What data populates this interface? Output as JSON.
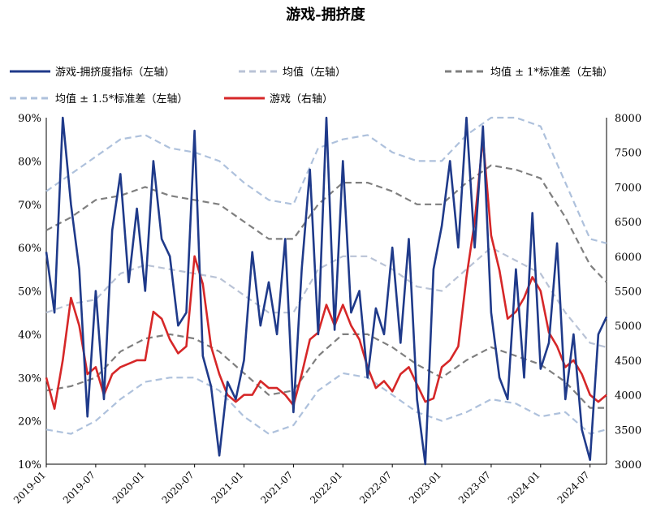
{
  "chart_data": {
    "type": "line",
    "title": "游戏-拥挤度",
    "x_ticks": [
      "2019-01",
      "2019-07",
      "2020-01",
      "2020-07",
      "2021-01",
      "2021-07",
      "2022-01",
      "2022-07",
      "2023-01",
      "2023-07",
      "2024-01",
      "2024-07"
    ],
    "x_range": [
      "2019-01",
      "2024-09"
    ],
    "y_left": {
      "range": [
        0.1,
        0.9
      ],
      "ticks": [
        "10%",
        "20%",
        "30%",
        "40%",
        "50%",
        "60%",
        "70%",
        "80%",
        "90%"
      ]
    },
    "y_right": {
      "range": [
        3000,
        8000
      ],
      "ticks": [
        "3000",
        "3500",
        "4000",
        "4500",
        "5000",
        "5500",
        "6000",
        "6500",
        "7000",
        "7500",
        "8000"
      ]
    },
    "grid": false,
    "legend_position": "top",
    "series": [
      {
        "name": "游戏-拥挤度指标（左轴）",
        "axis": "left",
        "color": "#1f3a8a",
        "style": "solid",
        "values": [
          [
            "2019-01",
            0.59
          ],
          [
            "2019-02",
            0.45
          ],
          [
            "2019-03",
            0.9
          ],
          [
            "2019-04",
            0.7
          ],
          [
            "2019-05",
            0.55
          ],
          [
            "2019-06",
            0.21
          ],
          [
            "2019-07",
            0.5
          ],
          [
            "2019-08",
            0.25
          ],
          [
            "2019-09",
            0.64
          ],
          [
            "2019-10",
            0.77
          ],
          [
            "2019-11",
            0.52
          ],
          [
            "2019-12",
            0.69
          ],
          [
            "2020-01",
            0.5
          ],
          [
            "2020-02",
            0.8
          ],
          [
            "2020-03",
            0.62
          ],
          [
            "2020-04",
            0.58
          ],
          [
            "2020-05",
            0.42
          ],
          [
            "2020-06",
            0.45
          ],
          [
            "2020-07",
            0.87
          ],
          [
            "2020-08",
            0.35
          ],
          [
            "2020-09",
            0.28
          ],
          [
            "2020-10",
            0.12
          ],
          [
            "2020-11",
            0.29
          ],
          [
            "2020-12",
            0.25
          ],
          [
            "2021-01",
            0.34
          ],
          [
            "2021-02",
            0.59
          ],
          [
            "2021-03",
            0.42
          ],
          [
            "2021-04",
            0.52
          ],
          [
            "2021-05",
            0.4
          ],
          [
            "2021-06",
            0.62
          ],
          [
            "2021-07",
            0.22
          ],
          [
            "2021-08",
            0.55
          ],
          [
            "2021-09",
            0.78
          ],
          [
            "2021-10",
            0.4
          ],
          [
            "2021-11",
            0.9
          ],
          [
            "2021-12",
            0.41
          ],
          [
            "2022-01",
            0.8
          ],
          [
            "2022-02",
            0.45
          ],
          [
            "2022-03",
            0.5
          ],
          [
            "2022-04",
            0.3
          ],
          [
            "2022-05",
            0.46
          ],
          [
            "2022-06",
            0.4
          ],
          [
            "2022-07",
            0.6
          ],
          [
            "2022-08",
            0.38
          ],
          [
            "2022-09",
            0.62
          ],
          [
            "2022-10",
            0.25
          ],
          [
            "2022-11",
            0.1
          ],
          [
            "2022-12",
            0.55
          ],
          [
            "2023-01",
            0.65
          ],
          [
            "2023-02",
            0.8
          ],
          [
            "2023-03",
            0.6
          ],
          [
            "2023-04",
            0.9
          ],
          [
            "2023-05",
            0.6
          ],
          [
            "2023-06",
            0.88
          ],
          [
            "2023-07",
            0.45
          ],
          [
            "2023-08",
            0.3
          ],
          [
            "2023-09",
            0.25
          ],
          [
            "2023-10",
            0.55
          ],
          [
            "2023-11",
            0.3
          ],
          [
            "2023-12",
            0.68
          ],
          [
            "2024-01",
            0.32
          ],
          [
            "2024-02",
            0.38
          ],
          [
            "2024-03",
            0.61
          ],
          [
            "2024-04",
            0.25
          ],
          [
            "2024-05",
            0.4
          ],
          [
            "2024-06",
            0.18
          ],
          [
            "2024-07",
            0.11
          ],
          [
            "2024-08",
            0.4
          ],
          [
            "2024-09",
            0.44
          ]
        ]
      },
      {
        "name": "均值（左轴）",
        "axis": "left",
        "color": "#b9c3d6",
        "style": "dashed",
        "values": [
          [
            "2019-01",
            0.45
          ],
          [
            "2019-04",
            0.47
          ],
          [
            "2019-07",
            0.48
          ],
          [
            "2019-10",
            0.54
          ],
          [
            "2020-01",
            0.56
          ],
          [
            "2020-04",
            0.55
          ],
          [
            "2020-07",
            0.54
          ],
          [
            "2020-10",
            0.53
          ],
          [
            "2021-01",
            0.49
          ],
          [
            "2021-04",
            0.45
          ],
          [
            "2021-07",
            0.45
          ],
          [
            "2021-10",
            0.55
          ],
          [
            "2022-01",
            0.58
          ],
          [
            "2022-04",
            0.58
          ],
          [
            "2022-07",
            0.55
          ],
          [
            "2022-10",
            0.51
          ],
          [
            "2023-01",
            0.5
          ],
          [
            "2023-04",
            0.55
          ],
          [
            "2023-07",
            0.6
          ],
          [
            "2023-10",
            0.57
          ],
          [
            "2024-01",
            0.54
          ],
          [
            "2024-04",
            0.45
          ],
          [
            "2024-07",
            0.38
          ],
          [
            "2024-09",
            0.37
          ]
        ]
      },
      {
        "name": "均值±1*标准差（左轴）",
        "axis": "left",
        "color": "#7f7f7f",
        "style": "dashed",
        "values": [
          [
            "2019-01",
            0.64
          ],
          [
            "2019-04",
            0.67
          ],
          [
            "2019-07",
            0.71
          ],
          [
            "2019-10",
            0.72
          ],
          [
            "2020-01",
            0.74
          ],
          [
            "2020-04",
            0.72
          ],
          [
            "2020-07",
            0.71
          ],
          [
            "2020-10",
            0.7
          ],
          [
            "2021-01",
            0.66
          ],
          [
            "2021-04",
            0.62
          ],
          [
            "2021-07",
            0.62
          ],
          [
            "2021-10",
            0.7
          ],
          [
            "2022-01",
            0.75
          ],
          [
            "2022-04",
            0.75
          ],
          [
            "2022-07",
            0.73
          ],
          [
            "2022-10",
            0.7
          ],
          [
            "2023-01",
            0.7
          ],
          [
            "2023-04",
            0.75
          ],
          [
            "2023-07",
            0.79
          ],
          [
            "2023-10",
            0.78
          ],
          [
            "2024-01",
            0.76
          ],
          [
            "2024-04",
            0.67
          ],
          [
            "2024-07",
            0.56
          ],
          [
            "2024-09",
            0.52
          ]
        ]
      },
      {
        "name": "均值±1*标准差（左轴）下轨",
        "axis": "left",
        "color": "#7f7f7f",
        "style": "dashed",
        "values": [
          [
            "2019-01",
            0.27
          ],
          [
            "2019-04",
            0.28
          ],
          [
            "2019-07",
            0.3
          ],
          [
            "2019-10",
            0.36
          ],
          [
            "2020-01",
            0.39
          ],
          [
            "2020-04",
            0.4
          ],
          [
            "2020-07",
            0.39
          ],
          [
            "2020-10",
            0.36
          ],
          [
            "2021-01",
            0.31
          ],
          [
            "2021-04",
            0.26
          ],
          [
            "2021-07",
            0.27
          ],
          [
            "2021-10",
            0.35
          ],
          [
            "2022-01",
            0.4
          ],
          [
            "2022-04",
            0.4
          ],
          [
            "2022-07",
            0.37
          ],
          [
            "2022-10",
            0.33
          ],
          [
            "2023-01",
            0.3
          ],
          [
            "2023-04",
            0.34
          ],
          [
            "2023-07",
            0.37
          ],
          [
            "2023-10",
            0.35
          ],
          [
            "2024-01",
            0.33
          ],
          [
            "2024-04",
            0.29
          ],
          [
            "2024-07",
            0.23
          ],
          [
            "2024-09",
            0.23
          ]
        ]
      },
      {
        "name": "均值±1.5*标准差（左轴）",
        "axis": "left",
        "color": "#aec1dc",
        "style": "dashed",
        "values": [
          [
            "2019-01",
            0.73
          ],
          [
            "2019-04",
            0.77
          ],
          [
            "2019-07",
            0.81
          ],
          [
            "2019-10",
            0.85
          ],
          [
            "2020-01",
            0.86
          ],
          [
            "2020-04",
            0.83
          ],
          [
            "2020-07",
            0.82
          ],
          [
            "2020-10",
            0.8
          ],
          [
            "2021-01",
            0.75
          ],
          [
            "2021-04",
            0.71
          ],
          [
            "2021-07",
            0.7
          ],
          [
            "2021-10",
            0.83
          ],
          [
            "2022-01",
            0.85
          ],
          [
            "2022-04",
            0.86
          ],
          [
            "2022-07",
            0.82
          ],
          [
            "2022-10",
            0.8
          ],
          [
            "2023-01",
            0.8
          ],
          [
            "2023-04",
            0.86
          ],
          [
            "2023-07",
            0.92
          ],
          [
            "2023-10",
            0.9
          ],
          [
            "2024-01",
            0.88
          ],
          [
            "2024-04",
            0.75
          ],
          [
            "2024-07",
            0.62
          ],
          [
            "2024-09",
            0.61
          ]
        ]
      },
      {
        "name": "均值±1.5*标准差（左轴）下轨",
        "axis": "left",
        "color": "#aec1dc",
        "style": "dashed",
        "values": [
          [
            "2019-01",
            0.18
          ],
          [
            "2019-04",
            0.17
          ],
          [
            "2019-07",
            0.2
          ],
          [
            "2019-10",
            0.25
          ],
          [
            "2020-01",
            0.29
          ],
          [
            "2020-04",
            0.3
          ],
          [
            "2020-07",
            0.3
          ],
          [
            "2020-10",
            0.27
          ],
          [
            "2021-01",
            0.21
          ],
          [
            "2021-04",
            0.17
          ],
          [
            "2021-07",
            0.19
          ],
          [
            "2021-10",
            0.27
          ],
          [
            "2022-01",
            0.31
          ],
          [
            "2022-04",
            0.3
          ],
          [
            "2022-07",
            0.26
          ],
          [
            "2022-10",
            0.22
          ],
          [
            "2023-01",
            0.2
          ],
          [
            "2023-04",
            0.22
          ],
          [
            "2023-07",
            0.25
          ],
          [
            "2023-10",
            0.24
          ],
          [
            "2024-01",
            0.21
          ],
          [
            "2024-04",
            0.22
          ],
          [
            "2024-07",
            0.17
          ],
          [
            "2024-09",
            0.18
          ]
        ]
      },
      {
        "name": "游戏（右轴）",
        "axis": "right",
        "color": "#d62728",
        "style": "solid",
        "values": [
          [
            "2019-01",
            4250
          ],
          [
            "2019-02",
            3800
          ],
          [
            "2019-03",
            4500
          ],
          [
            "2019-04",
            5400
          ],
          [
            "2019-05",
            5000
          ],
          [
            "2019-06",
            4300
          ],
          [
            "2019-07",
            4400
          ],
          [
            "2019-08",
            4000
          ],
          [
            "2019-09",
            4300
          ],
          [
            "2019-10",
            4400
          ],
          [
            "2019-11",
            4450
          ],
          [
            "2019-12",
            4500
          ],
          [
            "2020-01",
            4500
          ],
          [
            "2020-02",
            5200
          ],
          [
            "2020-03",
            5100
          ],
          [
            "2020-04",
            4800
          ],
          [
            "2020-05",
            4600
          ],
          [
            "2020-06",
            4700
          ],
          [
            "2020-07",
            6000
          ],
          [
            "2020-08",
            5600
          ],
          [
            "2020-09",
            4700
          ],
          [
            "2020-10",
            4300
          ],
          [
            "2020-11",
            4000
          ],
          [
            "2020-12",
            3900
          ],
          [
            "2021-01",
            4000
          ],
          [
            "2021-02",
            4000
          ],
          [
            "2021-03",
            4200
          ],
          [
            "2021-04",
            4100
          ],
          [
            "2021-05",
            4100
          ],
          [
            "2021-06",
            4000
          ],
          [
            "2021-07",
            3850
          ],
          [
            "2021-08",
            4300
          ],
          [
            "2021-09",
            4800
          ],
          [
            "2021-10",
            4900
          ],
          [
            "2021-11",
            5300
          ],
          [
            "2021-12",
            5000
          ],
          [
            "2022-01",
            5300
          ],
          [
            "2022-02",
            5000
          ],
          [
            "2022-03",
            4800
          ],
          [
            "2022-04",
            4400
          ],
          [
            "2022-05",
            4100
          ],
          [
            "2022-06",
            4200
          ],
          [
            "2022-07",
            4050
          ],
          [
            "2022-08",
            4300
          ],
          [
            "2022-09",
            4400
          ],
          [
            "2022-10",
            4150
          ],
          [
            "2022-11",
            3900
          ],
          [
            "2022-12",
            3950
          ],
          [
            "2023-01",
            4400
          ],
          [
            "2023-02",
            4500
          ],
          [
            "2023-03",
            4700
          ],
          [
            "2023-04",
            5700
          ],
          [
            "2023-05",
            6500
          ],
          [
            "2023-06",
            7700
          ],
          [
            "2023-07",
            6300
          ],
          [
            "2023-08",
            5800
          ],
          [
            "2023-09",
            5100
          ],
          [
            "2023-10",
            5200
          ],
          [
            "2023-11",
            5400
          ],
          [
            "2023-12",
            5700
          ],
          [
            "2024-01",
            5500
          ],
          [
            "2024-02",
            4900
          ],
          [
            "2024-03",
            4700
          ],
          [
            "2024-04",
            4400
          ],
          [
            "2024-05",
            4500
          ],
          [
            "2024-06",
            4300
          ],
          [
            "2024-07",
            4000
          ],
          [
            "2024-08",
            3900
          ],
          [
            "2024-09",
            4000
          ]
        ]
      }
    ],
    "legend": [
      {
        "label": "游戏-拥挤度指标（左轴）",
        "color": "#1f3a8a",
        "style": "solid"
      },
      {
        "label": "均值（左轴）",
        "color": "#b9c3d6",
        "style": "dashed"
      },
      {
        "label": "均值 ± 1*标准差（左轴）",
        "color": "#7f7f7f",
        "style": "dashed"
      },
      {
        "label": "均值 ± 1.5*标准差（左轴）",
        "color": "#aec1dc",
        "style": "dashed"
      },
      {
        "label": "游戏（右轴）",
        "color": "#d62728",
        "style": "solid"
      }
    ]
  }
}
